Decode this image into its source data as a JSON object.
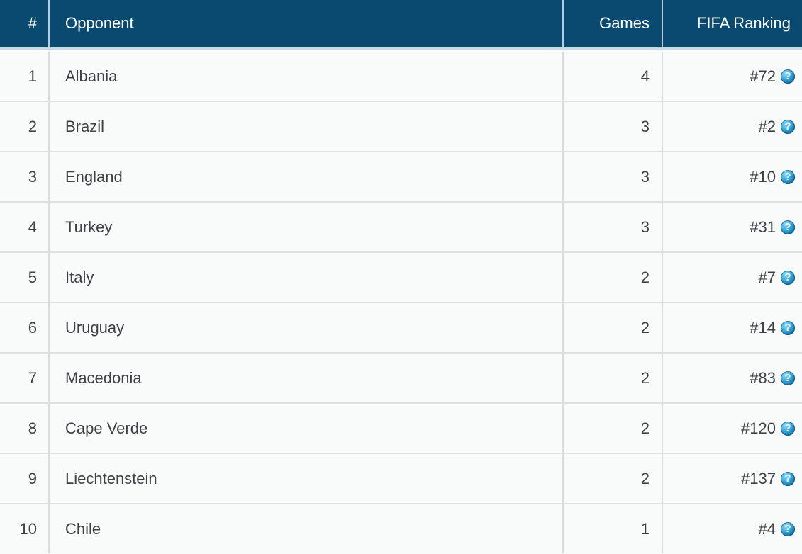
{
  "table": {
    "columns": [
      {
        "label": "#"
      },
      {
        "label": "Opponent"
      },
      {
        "label": "Games"
      },
      {
        "label": "FIFA Ranking"
      }
    ],
    "rows": [
      {
        "rank": "1",
        "opponent": "Albania",
        "games": "4",
        "fifa_ranking": "#72"
      },
      {
        "rank": "2",
        "opponent": "Brazil",
        "games": "3",
        "fifa_ranking": "#2"
      },
      {
        "rank": "3",
        "opponent": "England",
        "games": "3",
        "fifa_ranking": "#10"
      },
      {
        "rank": "4",
        "opponent": "Turkey",
        "games": "3",
        "fifa_ranking": "#31"
      },
      {
        "rank": "5",
        "opponent": "Italy",
        "games": "2",
        "fifa_ranking": "#7"
      },
      {
        "rank": "6",
        "opponent": "Uruguay",
        "games": "2",
        "fifa_ranking": "#14"
      },
      {
        "rank": "7",
        "opponent": "Macedonia",
        "games": "2",
        "fifa_ranking": "#83"
      },
      {
        "rank": "8",
        "opponent": "Cape Verde",
        "games": "2",
        "fifa_ranking": "#120"
      },
      {
        "rank": "9",
        "opponent": "Liechtenstein",
        "games": "2",
        "fifa_ranking": "#137"
      },
      {
        "rank": "10",
        "opponent": "Chile",
        "games": "1",
        "fifa_ranking": "#4"
      }
    ]
  },
  "icons": {
    "help_glyph": "?"
  },
  "colors": {
    "header_bg": "#0a4a70",
    "header_text": "#ffffff",
    "header_divider": "#b9ccd7",
    "header_band": "#ccd9e2",
    "row_bg": "#f9fafa",
    "row_divider": "#e0e0e1",
    "column_divider": "#d9dcde",
    "body_text": "#3e4144",
    "help_icon_blue": "#1477ad"
  }
}
